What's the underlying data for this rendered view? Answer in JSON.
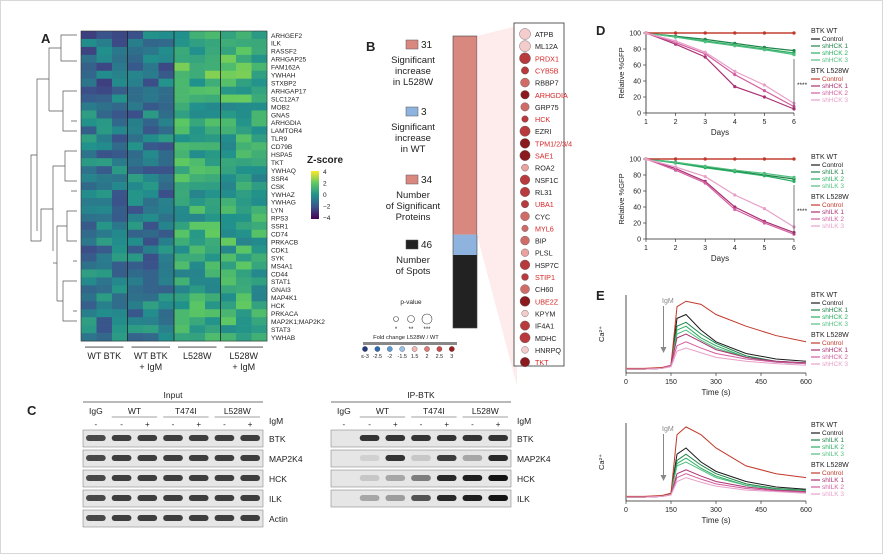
{
  "panels": {
    "a": "A",
    "b": "B",
    "c": "C",
    "d": "D",
    "e": "E"
  },
  "heatmap": {
    "genes": [
      "ARHGEF2",
      "ILK",
      "RASSF2",
      "ARHGAP25",
      "FAM162A",
      "YWHAH",
      "STXBP2",
      "ARHGAP17",
      "SLC12A7",
      "MOB2",
      "GNAS",
      "ARHGDIA",
      "LAMTOR4",
      "TLR9",
      "CD79B",
      "HSPA5",
      "TKT",
      "YWHAQ",
      "SSR4",
      "CSK",
      "YWHAZ",
      "YWHAG",
      "LYN",
      "RPS3",
      "SSR1",
      "CD74",
      "PRKACB",
      "CDK1",
      "SYK",
      "MS4A1",
      "CD44",
      "STAT1",
      "GNAI3",
      "MAP4K1",
      "HCK",
      "PRKACA",
      "MAP2K1;MAP2K2",
      "STAT3",
      "YWHAB"
    ],
    "groups": [
      "WT BTK",
      "WT BTK\n+ IgM",
      "L528W",
      "L528W\n+ IgM"
    ],
    "legend_title": "Z-score",
    "legend_ticks": [
      "4",
      "2",
      "0",
      "−2",
      "−4"
    ]
  },
  "panel_b": {
    "stats": [
      {
        "number": "31",
        "label": [
          "Significant",
          "increase",
          "in L528W"
        ],
        "color": "#d98880"
      },
      {
        "number": "3",
        "label": [
          "Significant",
          "increase",
          "in WT"
        ],
        "color": "#8db3de"
      },
      {
        "number": "34",
        "label": [
          "Number",
          "of Significant",
          "Proteins"
        ],
        "color": "#d98880"
      },
      {
        "number": "46",
        "label": [
          "Number",
          "of Spots"
        ],
        "color": "#222222"
      }
    ],
    "pvalue_title": "p-value",
    "pvalue_labels": [
      "*",
      "**",
      "***"
    ],
    "fold_title": "Fold change L528W / WT",
    "fold_ticks": [
      "≤-3",
      "-2.5",
      "-2",
      "-1.5",
      "1.5",
      "2",
      "2.5",
      "3"
    ],
    "proteins": [
      {
        "name": "ATPB",
        "red": false
      },
      {
        "name": "ML12A",
        "red": false
      },
      {
        "name": "PRDX1",
        "red": true
      },
      {
        "name": "CYB5B",
        "red": true
      },
      {
        "name": "RBBP7",
        "red": false
      },
      {
        "name": "ARHGDIA",
        "red": true
      },
      {
        "name": "GRP75",
        "red": false
      },
      {
        "name": "HCK",
        "red": true
      },
      {
        "name": "EZRI",
        "red": false
      },
      {
        "name": "TPM1/2/3/4",
        "red": true
      },
      {
        "name": "SAE1",
        "red": true
      },
      {
        "name": "ROA2",
        "red": false
      },
      {
        "name": "NSF1C",
        "red": false
      },
      {
        "name": "RL31",
        "red": false
      },
      {
        "name": "UBA1",
        "red": true
      },
      {
        "name": "CYC",
        "red": false
      },
      {
        "name": "MYL6",
        "red": true
      },
      {
        "name": "BIP",
        "red": false
      },
      {
        "name": "PLSL",
        "red": false
      },
      {
        "name": "HSP7C",
        "red": false
      },
      {
        "name": "STIP1",
        "red": true
      },
      {
        "name": "CH60",
        "red": false
      },
      {
        "name": "UBE2Z",
        "red": true
      },
      {
        "name": "KPYM",
        "red": false
      },
      {
        "name": "IF4A1",
        "red": false
      },
      {
        "name": "MDHC",
        "red": false
      },
      {
        "name": "HNRPQ",
        "red": false
      },
      {
        "name": "TKT",
        "red": true
      }
    ]
  },
  "panel_c": {
    "input_title": "Input",
    "ip_title": "IP-BTK",
    "input_groups": [
      "IgG",
      "WT",
      "T474I",
      "L528W"
    ],
    "ip_groups": [
      "IgG",
      "WT",
      "T474I",
      "L528W"
    ],
    "igm_label": "IgM",
    "signs": [
      "-",
      "-",
      "+",
      "-",
      "+",
      "-",
      "+"
    ],
    "input_rows": [
      "BTK",
      "MAP2K4",
      "HCK",
      "ILK",
      "Actin"
    ],
    "ip_rows": [
      "BTK",
      "MAP2K4",
      "HCK",
      "ILK"
    ]
  },
  "panel_d": {
    "xlabel": "Days",
    "ylabel": "Relative %GFP",
    "stars": "****",
    "top_legend": {
      "wt_title": "BTK WT",
      "l5_title": "BTK L528W",
      "items": [
        "Control",
        "shHCK 1",
        "shHCK 2",
        "shHCK 3"
      ]
    },
    "bottom_legend": {
      "wt_title": "BTK WT",
      "l5_title": "BTK L528W",
      "items": [
        "Control",
        "shILK 1",
        "shILK 2",
        "shILK 3"
      ]
    }
  },
  "panel_e": {
    "xlabel": "Time (s)",
    "ylabel": "Ca²⁺",
    "igm": "IgM",
    "top_legend": {
      "wt_title": "BTK WT",
      "l5_title": "BTK L528W",
      "items": [
        "Control",
        "shHCK 1",
        "shHCK 2",
        "shHCK 3"
      ]
    },
    "bottom_legend": {
      "wt_title": "BTK WT",
      "l5_title": "BTK L528W",
      "items": [
        "Control",
        "shILK 1",
        "shILK 2",
        "shILK 3"
      ]
    }
  },
  "chart_data": [
    {
      "type": "line",
      "x": [
        1,
        2,
        3,
        4,
        5,
        6
      ],
      "xlabel": "Days",
      "ylabel": "Relative %GFP",
      "ylim": [
        0,
        100
      ],
      "xticks": [
        1,
        2,
        3,
        4,
        5,
        6
      ],
      "yticks": [
        0,
        20,
        40,
        60,
        80,
        100
      ],
      "series": [
        {
          "name": "BTK WT Control",
          "color": "#c0392b",
          "values": [
            100,
            100,
            100,
            100,
            100,
            100
          ]
        },
        {
          "name": "BTK WT shHCK 1",
          "color": "#1e8449",
          "values": [
            100,
            96,
            92,
            87,
            82,
            78
          ]
        },
        {
          "name": "BTK WT shHCK 2",
          "color": "#27ae60",
          "values": [
            100,
            95,
            90,
            85,
            80,
            75
          ]
        },
        {
          "name": "BTK WT shHCK 3",
          "color": "#52be80",
          "values": [
            100,
            95,
            89,
            84,
            79,
            73
          ]
        },
        {
          "name": "BTK L528W Control",
          "color": "#c0392b",
          "values": [
            100,
            100,
            100,
            100,
            100,
            100
          ]
        },
        {
          "name": "BTK L528W shHCK 1",
          "color": "#a93273",
          "values": [
            100,
            86,
            70,
            33,
            20,
            5
          ]
        },
        {
          "name": "BTK L528W shHCK 2",
          "color": "#d35d9f",
          "values": [
            100,
            88,
            74,
            48,
            28,
            8
          ]
        },
        {
          "name": "BTK L528W shHCK 3",
          "color": "#e8a0c9",
          "values": [
            100,
            90,
            76,
            52,
            35,
            12
          ]
        }
      ]
    },
    {
      "type": "line",
      "x": [
        1,
        2,
        3,
        4,
        5,
        6
      ],
      "xlabel": "Days",
      "ylabel": "Relative %GFP",
      "ylim": [
        0,
        100
      ],
      "xticks": [
        1,
        2,
        3,
        4,
        5,
        6
      ],
      "yticks": [
        0,
        20,
        40,
        60,
        80,
        100
      ],
      "series": [
        {
          "name": "BTK WT Control",
          "color": "#c0392b",
          "values": [
            100,
            100,
            100,
            100,
            100,
            100
          ]
        },
        {
          "name": "BTK WT shILK 1",
          "color": "#1e8449",
          "values": [
            100,
            96,
            90,
            85,
            80,
            75
          ]
        },
        {
          "name": "BTK WT shILK 2",
          "color": "#27ae60",
          "values": [
            100,
            95,
            89,
            84,
            79,
            72
          ]
        },
        {
          "name": "BTK WT shILK 3",
          "color": "#52be80",
          "values": [
            100,
            96,
            91,
            86,
            82,
            77
          ]
        },
        {
          "name": "BTK L528W Control",
          "color": "#c0392b",
          "values": [
            100,
            100,
            100,
            100,
            100,
            100
          ]
        },
        {
          "name": "BTK L528W shILK 1",
          "color": "#a93273",
          "values": [
            100,
            88,
            72,
            40,
            22,
            8
          ]
        },
        {
          "name": "BTK L528W shILK 2",
          "color": "#d35d9f",
          "values": [
            100,
            86,
            70,
            37,
            20,
            6
          ]
        },
        {
          "name": "BTK L528W shILK 3",
          "color": "#e8a0c9",
          "values": [
            100,
            90,
            78,
            55,
            38,
            15
          ]
        }
      ]
    },
    {
      "type": "line",
      "x": [
        0,
        60,
        120,
        150,
        170,
        200,
        250,
        300,
        400,
        500,
        600
      ],
      "xlabel": "Time (s)",
      "ylabel": "Ca²⁺",
      "xlim": [
        0,
        600
      ],
      "ylim": [
        0,
        1
      ],
      "xticks": [
        0,
        150,
        300,
        450,
        600
      ],
      "series": [
        {
          "name": "BTK WT Control",
          "color": "#1b1b1b",
          "values": [
            0.05,
            0.05,
            0.06,
            0.1,
            0.7,
            0.75,
            0.55,
            0.4,
            0.25,
            0.18,
            0.15
          ]
        },
        {
          "name": "BTK WT shHCK 1",
          "color": "#1e8449",
          "values": [
            0.05,
            0.05,
            0.06,
            0.1,
            0.6,
            0.65,
            0.5,
            0.38,
            0.22,
            0.15,
            0.13
          ]
        },
        {
          "name": "BTK WT shHCK 2",
          "color": "#27ae60",
          "values": [
            0.05,
            0.05,
            0.06,
            0.1,
            0.55,
            0.6,
            0.45,
            0.35,
            0.2,
            0.14,
            0.12
          ]
        },
        {
          "name": "BTK WT shHCK 3",
          "color": "#52be80",
          "values": [
            0.05,
            0.05,
            0.06,
            0.1,
            0.5,
            0.55,
            0.42,
            0.32,
            0.2,
            0.14,
            0.12
          ]
        },
        {
          "name": "BTK L528W Control",
          "color": "#c0392b",
          "values": [
            0.06,
            0.06,
            0.07,
            0.1,
            0.85,
            0.92,
            0.88,
            0.75,
            0.6,
            0.48,
            0.4
          ]
        },
        {
          "name": "BTK L528W shHCK 1",
          "color": "#a93273",
          "values": [
            0.05,
            0.05,
            0.06,
            0.1,
            0.45,
            0.5,
            0.4,
            0.3,
            0.2,
            0.15,
            0.13
          ]
        },
        {
          "name": "BTK L528W shHCK 2",
          "color": "#d35d9f",
          "values": [
            0.05,
            0.05,
            0.06,
            0.1,
            0.35,
            0.4,
            0.32,
            0.25,
            0.18,
            0.14,
            0.12
          ]
        },
        {
          "name": "BTK L528W shHCK 3",
          "color": "#e8a0c9",
          "values": [
            0.05,
            0.05,
            0.06,
            0.08,
            0.28,
            0.32,
            0.26,
            0.2,
            0.15,
            0.12,
            0.1
          ]
        }
      ]
    },
    {
      "type": "line",
      "x": [
        0,
        60,
        120,
        150,
        170,
        200,
        250,
        300,
        400,
        500,
        600
      ],
      "xlabel": "Time (s)",
      "ylabel": "Ca²⁺",
      "xlim": [
        0,
        600
      ],
      "ylim": [
        0,
        1
      ],
      "xticks": [
        0,
        150,
        300,
        450,
        600
      ],
      "series": [
        {
          "name": "BTK WT Control",
          "color": "#1b1b1b",
          "values": [
            0.05,
            0.05,
            0.06,
            0.1,
            0.6,
            0.68,
            0.5,
            0.38,
            0.25,
            0.18,
            0.15
          ]
        },
        {
          "name": "BTK WT shILK 1",
          "color": "#1e8449",
          "values": [
            0.05,
            0.05,
            0.06,
            0.1,
            0.52,
            0.6,
            0.46,
            0.35,
            0.22,
            0.16,
            0.14
          ]
        },
        {
          "name": "BTK WT shILK 2",
          "color": "#27ae60",
          "values": [
            0.05,
            0.05,
            0.06,
            0.1,
            0.48,
            0.55,
            0.42,
            0.32,
            0.2,
            0.15,
            0.13
          ]
        },
        {
          "name": "BTK WT shILK 3",
          "color": "#52be80",
          "values": [
            0.05,
            0.05,
            0.06,
            0.1,
            0.45,
            0.5,
            0.4,
            0.3,
            0.2,
            0.15,
            0.13
          ]
        },
        {
          "name": "BTK L528W Control",
          "color": "#c0392b",
          "values": [
            0.06,
            0.06,
            0.07,
            0.1,
            0.85,
            0.95,
            0.85,
            0.68,
            0.45,
            0.35,
            0.3
          ]
        },
        {
          "name": "BTK L528W shILK 1",
          "color": "#a93273",
          "values": [
            0.05,
            0.05,
            0.06,
            0.08,
            0.35,
            0.4,
            0.32,
            0.25,
            0.18,
            0.14,
            0.12
          ]
        },
        {
          "name": "BTK L528W shILK 2",
          "color": "#d35d9f",
          "values": [
            0.05,
            0.05,
            0.06,
            0.08,
            0.3,
            0.35,
            0.28,
            0.22,
            0.16,
            0.13,
            0.11
          ]
        },
        {
          "name": "BTK L528W shILK 3",
          "color": "#e8a0c9",
          "values": [
            0.05,
            0.05,
            0.06,
            0.08,
            0.25,
            0.3,
            0.24,
            0.19,
            0.14,
            0.12,
            0.1
          ]
        }
      ]
    }
  ]
}
